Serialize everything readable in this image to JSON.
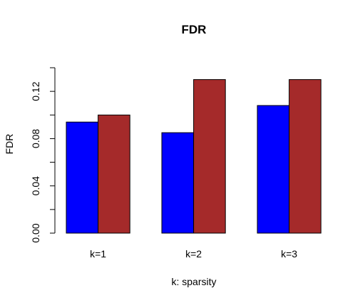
{
  "chart_data": {
    "type": "bar",
    "title": "FDR",
    "xlabel": "k: sparsity",
    "ylabel": "FDR",
    "categories": [
      "k=1",
      "k=2",
      "k=3"
    ],
    "series": [
      {
        "color": "#0000ff",
        "values": [
          0.094,
          0.085,
          0.108
        ]
      },
      {
        "color": "#a52a2a",
        "values": [
          0.1,
          0.13,
          0.13
        ]
      }
    ],
    "ylim": [
      0,
      0.14
    ],
    "yticks": [
      0.0,
      0.02,
      0.04,
      0.06,
      0.08,
      0.1,
      0.12,
      0.14
    ],
    "ytick_labels": [
      "0.00",
      "",
      "0.04",
      "",
      "0.08",
      "",
      "0.12",
      ""
    ],
    "grid": false,
    "legend": "none"
  }
}
